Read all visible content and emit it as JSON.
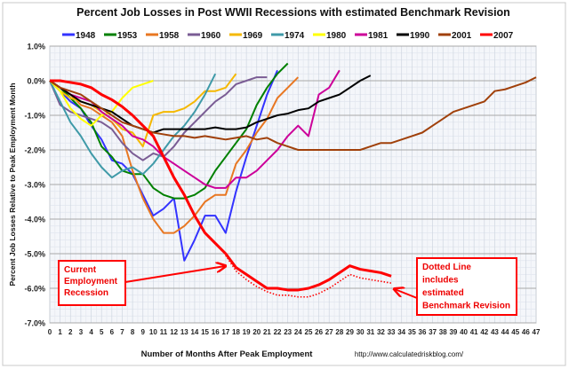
{
  "chart_data": {
    "type": "line",
    "title": "Percent Job Losses in Post WWII Recessions with estimated Benchmark Revision",
    "xlabel": "Number of Months After Peak Employment",
    "ylabel": "Percent Job Losses Relative to Peak Employment Month",
    "source": "http://www.calculatedriskblog.com/",
    "xlim": [
      0,
      47
    ],
    "ylim": [
      -7,
      1
    ],
    "yticks": [
      "1.0%",
      "0.0%",
      "-1.0%",
      "-2.0%",
      "-3.0%",
      "-4.0%",
      "-5.0%",
      "-6.0%",
      "-7.0%"
    ],
    "xticks": [
      "0",
      "1",
      "2",
      "3",
      "4",
      "5",
      "6",
      "7",
      "8",
      "9",
      "10",
      "11",
      "12",
      "13",
      "14",
      "15",
      "16",
      "17",
      "18",
      "19",
      "20",
      "21",
      "22",
      "23",
      "24",
      "25",
      "26",
      "27",
      "28",
      "29",
      "30",
      "31",
      "32",
      "33",
      "34",
      "35",
      "36",
      "37",
      "38",
      "39",
      "40",
      "41",
      "42",
      "43",
      "44",
      "45",
      "46",
      "47"
    ],
    "grid": true,
    "legend_position": "top",
    "series": [
      {
        "name": "1948",
        "color": "#3333ff",
        "values": [
          0,
          -0.3,
          -0.6,
          -0.8,
          -1.3,
          -1.7,
          -2.3,
          -2.4,
          -2.7,
          -3.3,
          -3.9,
          -3.7,
          -3.4,
          -5.2,
          -4.6,
          -3.9,
          -3.9,
          -4.4,
          -3.2,
          -2.2,
          -1.3,
          -0.4,
          0.3
        ]
      },
      {
        "name": "1953",
        "color": "#008000",
        "values": [
          0,
          -0.2,
          -0.5,
          -0.8,
          -1.2,
          -1.9,
          -2.2,
          -2.6,
          -2.7,
          -2.7,
          -3.1,
          -3.3,
          -3.4,
          -3.4,
          -3.3,
          -3.1,
          -2.6,
          -2.2,
          -1.8,
          -1.4,
          -0.7,
          -0.2,
          0.2,
          0.5
        ]
      },
      {
        "name": "1958",
        "color": "#e87722",
        "values": [
          0,
          -0.2,
          -0.4,
          -0.7,
          -0.8,
          -1.0,
          -1.2,
          -1.6,
          -2.6,
          -3.4,
          -4.0,
          -4.4,
          -4.4,
          -4.2,
          -3.9,
          -3.5,
          -3.3,
          -3.3,
          -2.4,
          -2.0,
          -1.5,
          -1.1,
          -0.5,
          -0.2,
          0.1
        ]
      },
      {
        "name": "1960",
        "color": "#7a5c94",
        "values": [
          0,
          -0.7,
          -0.9,
          -1.0,
          -1.1,
          -1.2,
          -1.4,
          -1.8,
          -2.1,
          -2.3,
          -2.1,
          -2.2,
          -1.9,
          -1.5,
          -1.2,
          -0.9,
          -0.6,
          -0.4,
          -0.1,
          0.0,
          0.1,
          0.1
        ]
      },
      {
        "name": "1969",
        "color": "#f5b800",
        "values": [
          0,
          -0.3,
          -0.5,
          -0.6,
          -0.7,
          -0.9,
          -1.1,
          -1.4,
          -1.5,
          -1.9,
          -1.0,
          -0.9,
          -0.9,
          -0.8,
          -0.6,
          -0.3,
          -0.3,
          -0.2,
          0.2
        ]
      },
      {
        "name": "1974",
        "color": "#3f9aa8",
        "values": [
          0,
          -0.6,
          -1.2,
          -1.6,
          -2.1,
          -2.5,
          -2.8,
          -2.6,
          -2.5,
          -2.7,
          -2.4,
          -2.0,
          -1.6,
          -1.3,
          -0.9,
          -0.4,
          0.2
        ]
      },
      {
        "name": "1980",
        "color": "#ffff00",
        "values": [
          0,
          -0.3,
          -0.8,
          -1.1,
          -1.3,
          -1.0,
          -0.9,
          -0.5,
          -0.2,
          -0.1,
          0.0
        ]
      },
      {
        "name": "1981",
        "color": "#cc0099",
        "values": [
          0,
          -0.2,
          -0.4,
          -0.5,
          -0.6,
          -0.9,
          -1.1,
          -1.3,
          -1.6,
          -1.7,
          -1.9,
          -2.2,
          -2.4,
          -2.6,
          -2.8,
          -3.0,
          -3.1,
          -3.1,
          -2.8,
          -2.8,
          -2.6,
          -2.3,
          -2.0,
          -1.6,
          -1.3,
          -1.6,
          -0.4,
          -0.2,
          0.3
        ]
      },
      {
        "name": "1990",
        "color": "#000000",
        "values": [
          0,
          -0.2,
          -0.4,
          -0.6,
          -0.7,
          -0.8,
          -0.9,
          -1.1,
          -1.3,
          -1.4,
          -1.5,
          -1.4,
          -1.4,
          -1.4,
          -1.4,
          -1.4,
          -1.35,
          -1.4,
          -1.4,
          -1.35,
          -1.2,
          -1.1,
          -1.0,
          -0.95,
          -0.85,
          -0.8,
          -0.6,
          -0.5,
          -0.4,
          -0.2,
          0.0,
          0.15
        ]
      },
      {
        "name": "2001",
        "color": "#a0400a",
        "values": [
          0,
          -0.2,
          -0.3,
          -0.4,
          -0.6,
          -0.8,
          -1.0,
          -1.2,
          -1.3,
          -1.4,
          -1.5,
          -1.55,
          -1.6,
          -1.6,
          -1.65,
          -1.6,
          -1.65,
          -1.7,
          -1.65,
          -1.6,
          -1.7,
          -1.65,
          -1.8,
          -1.9,
          -2.0,
          -2.0,
          -2.0,
          -2.0,
          -2.0,
          -2.0,
          -2.0,
          -1.9,
          -1.8,
          -1.8,
          -1.7,
          -1.6,
          -1.5,
          -1.3,
          -1.1,
          -0.9,
          -0.8,
          -0.7,
          -0.6,
          -0.3,
          -0.25,
          -0.15,
          -0.05,
          0.1
        ]
      },
      {
        "name": "2007",
        "color": "#ff0000",
        "values": [
          0,
          0,
          -0.05,
          -0.1,
          -0.2,
          -0.4,
          -0.55,
          -0.75,
          -1.0,
          -1.3,
          -1.6,
          -2.2,
          -2.8,
          -3.3,
          -3.9,
          -4.4,
          -4.7,
          -5.0,
          -5.4,
          -5.6,
          -5.8,
          -6.0,
          -6.0,
          -6.05,
          -6.05,
          -6.0,
          -5.9,
          -5.75,
          -5.55,
          -5.35,
          -5.45,
          -5.5,
          -5.55,
          -5.65
        ]
      }
    ],
    "revision_series": {
      "color": "#ff0000",
      "style": "dotted",
      "x_start": 17,
      "values": [
        -5.05,
        -5.5,
        -5.75,
        -5.95,
        -6.1,
        -6.2,
        -6.2,
        -6.25,
        -6.25,
        -6.15,
        -6.0,
        -5.8,
        -5.6,
        -5.7,
        -5.75,
        -5.8,
        -5.85
      ]
    },
    "annotations": [
      {
        "text": "Current Employment Recession",
        "lines": [
          "Current",
          "Employment",
          "Recession"
        ]
      },
      {
        "text": "Dotted Line includes estimated Benchmark Revision",
        "lines": [
          "Dotted Line",
          "includes",
          "estimated",
          "Benchmark Revision"
        ]
      }
    ]
  }
}
